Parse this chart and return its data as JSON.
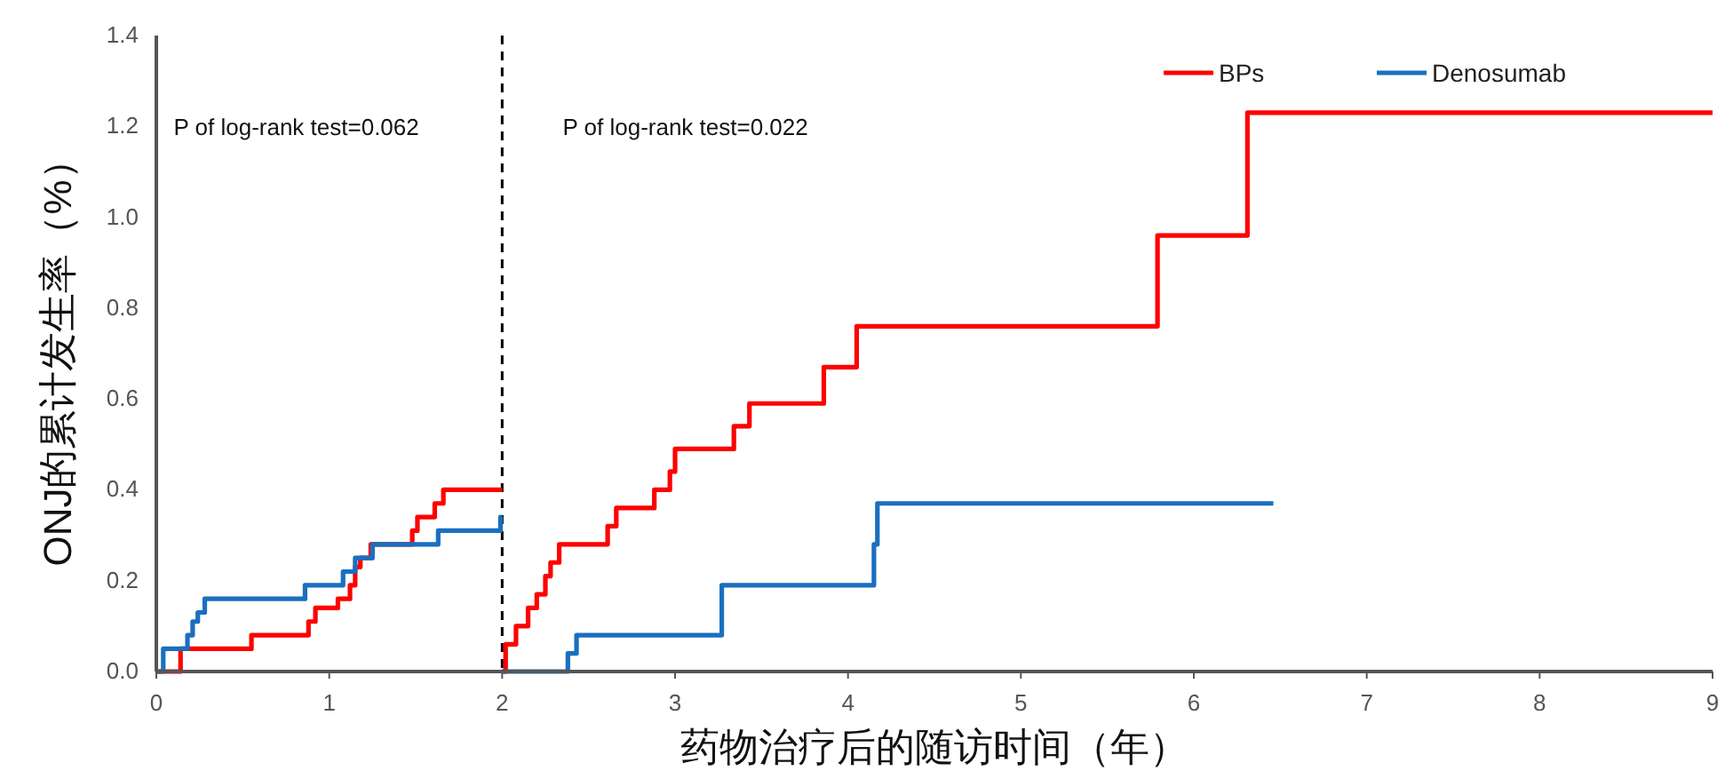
{
  "chart_data": {
    "type": "step",
    "xlabel": "药物治疗后的随访时间（年）",
    "ylabel": "ONJ的累计发生率（%）",
    "xlim": [
      0,
      9
    ],
    "xticks": [
      0,
      1,
      2,
      3,
      4,
      5,
      6,
      7,
      8,
      9
    ],
    "ylim": [
      0,
      1.4
    ],
    "yticks": [
      {
        "value": 0,
        "label": "0.0"
      },
      {
        "value": 0.2,
        "label": "0.2"
      },
      {
        "value": 0.4,
        "label": "0.4"
      },
      {
        "value": 0.6,
        "label": "0.6"
      },
      {
        "value": 0.8,
        "label": "0.8"
      },
      {
        "value": 1.0,
        "label": "1.0"
      },
      {
        "value": 1.2,
        "label": "1.2"
      },
      {
        "value": 1.4,
        "label": "1.4"
      }
    ],
    "grid": false,
    "legend": "top right",
    "line_style": "solid",
    "ref_lines": [
      {
        "axis": "x",
        "value": 2,
        "color": "#000000",
        "line_style": "dashed"
      }
    ],
    "annotations": [
      "P of log-rank test=0.062",
      "P of log-rank test=0.022"
    ],
    "series": [
      {
        "name": "BPs",
        "color": "#ff0000",
        "x": [
          0,
          0.14,
          0.55,
          0.88,
          0.92,
          1.05,
          1.12,
          1.15,
          1.18,
          1.24,
          1.48,
          1.51,
          1.61,
          1.66,
          2.0
        ],
        "values": [
          0,
          0.05,
          0.08,
          0.11,
          0.14,
          0.16,
          0.19,
          0.23,
          0.25,
          0.28,
          0.31,
          0.34,
          0.37,
          0.4,
          0.4
        ]
      },
      {
        "name": "Denosumab",
        "color": "#1a6fc0",
        "x": [
          0,
          0.04,
          0.18,
          0.21,
          0.24,
          0.28,
          0.86,
          1.08,
          1.15,
          1.25,
          1.63,
          1.99,
          2.0
        ],
        "values": [
          0,
          0.05,
          0.08,
          0.11,
          0.13,
          0.16,
          0.19,
          0.22,
          0.25,
          0.28,
          0.31,
          0.34,
          0.34
        ]
      },
      {
        "color": "#ff0000",
        "x": [
          2.0,
          2.02,
          2.08,
          2.15,
          2.2,
          2.25,
          2.28,
          2.33,
          2.61,
          2.66,
          2.88,
          2.97,
          3.0,
          3.34,
          3.43,
          3.86,
          4.05,
          5.79,
          6.31,
          9.0
        ],
        "values": [
          0,
          0.06,
          0.1,
          0.14,
          0.17,
          0.21,
          0.24,
          0.28,
          0.32,
          0.36,
          0.4,
          0.44,
          0.49,
          0.54,
          0.59,
          0.67,
          0.76,
          0.96,
          1.23,
          1.23
        ]
      },
      {
        "color": "#1a6fc0",
        "x": [
          2.0,
          2.38,
          2.43,
          3.27,
          4.15,
          4.17,
          6.46
        ],
        "values": [
          0,
          0.04,
          0.08,
          0.19,
          0.28,
          0.37,
          0.37
        ]
      }
    ]
  }
}
